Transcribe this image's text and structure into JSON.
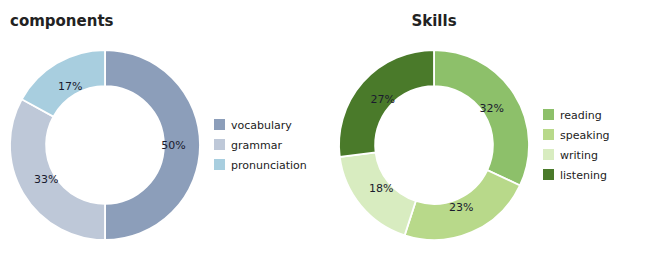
{
  "chart_data": [
    {
      "type": "donut",
      "title": "components",
      "categories": [
        "vocabulary",
        "grammar",
        "pronunciation"
      ],
      "values": [
        50,
        33,
        17
      ],
      "value_labels": [
        "50%",
        "33%",
        "17%"
      ],
      "colors": [
        "#8C9EBA",
        "#BEC8D8",
        "#A8CEDF"
      ],
      "data_labels": true,
      "legend": "right"
    },
    {
      "type": "donut",
      "title": "Skills",
      "categories": [
        "reading",
        "speaking",
        "writing",
        "listening"
      ],
      "values": [
        32,
        23,
        18,
        27
      ],
      "value_labels": [
        "32%",
        "23%",
        "18%",
        "27%"
      ],
      "colors": [
        "#8DC06A",
        "#B8D98A",
        "#D8ECC0",
        "#4A7A2A"
      ],
      "data_labels": true,
      "legend": "right"
    }
  ]
}
